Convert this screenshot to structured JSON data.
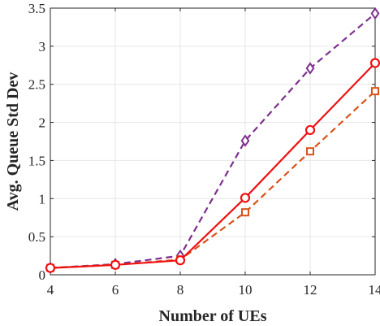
{
  "chart_data": {
    "type": "line",
    "xlabel": "Number of UEs",
    "ylabel": "Avg. Queue Std Dev",
    "xlim": [
      4,
      14
    ],
    "ylim": [
      0,
      3.5
    ],
    "x": [
      4,
      6,
      8,
      10,
      12,
      14
    ],
    "x_ticks": [
      "4",
      "6",
      "8",
      "10",
      "12",
      "14"
    ],
    "y_ticks": [
      "0",
      "0.5",
      "1",
      "1.5",
      "2",
      "2.5",
      "3",
      "3.5"
    ],
    "grid": true,
    "series": [
      {
        "values": [
          0.09,
          0.13,
          0.19,
          1.01,
          1.9,
          2.78
        ],
        "color": "#ee1111",
        "line_style": "solid",
        "marker": "circle"
      },
      {
        "values": [
          0.09,
          0.13,
          0.2,
          0.82,
          1.62,
          2.41
        ],
        "color": "#d95319",
        "line_style": "dashed",
        "marker": "square"
      },
      {
        "values": [
          0.09,
          0.14,
          0.25,
          1.76,
          2.71,
          3.43
        ],
        "color": "#7e2f8e",
        "line_style": "dashed",
        "marker": "diamond"
      }
    ]
  }
}
